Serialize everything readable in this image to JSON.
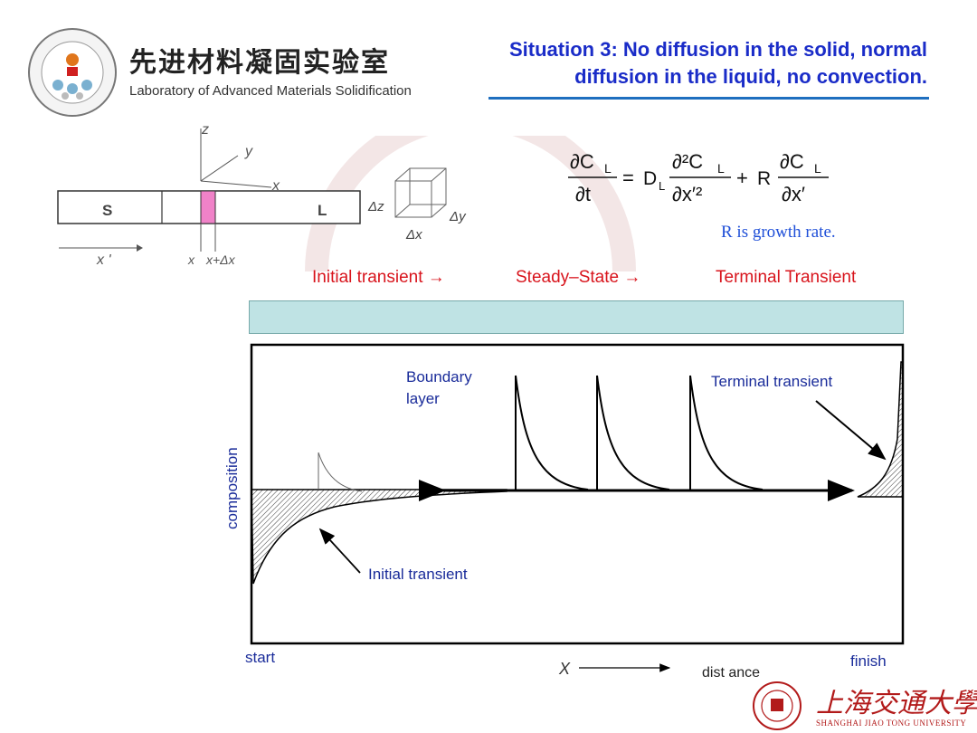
{
  "header": {
    "lab_name_cn": "先进材料凝固实验室",
    "lab_name_en": "Laboratory of Advanced Materials Solidification",
    "title_line1": "Situation 3: No diffusion in the solid, normal",
    "title_line2": "diffusion in the liquid, no convection."
  },
  "bar_diagram": {
    "axis_z": "z",
    "axis_y": "y",
    "axis_x": "x",
    "solid_label": "S",
    "liquid_label": "L",
    "moving_axis": "x '",
    "pos_x": "x",
    "pos_x_dx": "x+Δx",
    "cube_dz": "Δz",
    "cube_dy": "Δy",
    "cube_dx": "Δx"
  },
  "equation": {
    "lhs_num": "∂C",
    "lhs_den": "∂t",
    "equals": "=",
    "coef_D": "D",
    "term1_num": "∂²C",
    "term1_den": "∂x′²",
    "plus": "+",
    "coef_R": "R",
    "term2_num": "∂C",
    "term2_den": "∂x′",
    "subscript_L": "L",
    "note": "R is growth rate."
  },
  "stages": {
    "initial": "Initial transient →",
    "steady": "Steady–State →",
    "terminal": "Terminal Transient"
  },
  "plot": {
    "ylabel": "composition",
    "boundary_layer_1": "Boundary",
    "boundary_layer_2": "layer",
    "terminal_label": "Terminal transient",
    "initial_label": "Initial transient",
    "start": "start",
    "finish": "finish",
    "x_axis_label": "X",
    "distance_label": "dist ance"
  },
  "footer": {
    "university_cn": "上海交通大學",
    "university_en": "SHANGHAI JIAO TONG UNIVERSITY"
  }
}
